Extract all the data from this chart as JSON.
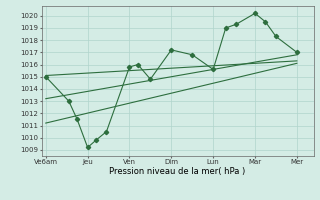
{
  "background_color": "#d4ece5",
  "grid_color": "#b0d4cc",
  "line_color": "#2d6e3e",
  "xtick_labels": [
    "Ve6am",
    "Jeu",
    "Ven",
    "Dim",
    "Lun",
    "Mar",
    "Mer"
  ],
  "xtick_positions": [
    0,
    1,
    2,
    3,
    4,
    5,
    6
  ],
  "xlabel": "Pression niveau de la mer( hPa )",
  "ylim": [
    1008.5,
    1020.8
  ],
  "yticks": [
    1009,
    1010,
    1011,
    1012,
    1013,
    1014,
    1015,
    1016,
    1017,
    1018,
    1019,
    1020
  ],
  "xlim": [
    -0.1,
    6.4
  ],
  "main_series_x": [
    0,
    0.55,
    0.75,
    1.0,
    1.2,
    1.45,
    2.0,
    2.2,
    2.5,
    3.0,
    3.5,
    4.0,
    4.3,
    4.55,
    5.0,
    5.25,
    5.5,
    6.0
  ],
  "main_series_y": [
    1015.0,
    1013.0,
    1011.5,
    1009.2,
    1009.8,
    1010.5,
    1015.8,
    1016.0,
    1014.8,
    1017.2,
    1016.8,
    1015.6,
    1019.0,
    1019.3,
    1020.2,
    1019.5,
    1018.3,
    1017.0
  ],
  "trend1_x": [
    0,
    6
  ],
  "trend1_y": [
    1015.1,
    1016.3
  ],
  "trend2_x": [
    0,
    6
  ],
  "trend2_y": [
    1013.2,
    1016.8
  ],
  "trend3_x": [
    0,
    6
  ],
  "trend3_y": [
    1011.2,
    1016.1
  ]
}
